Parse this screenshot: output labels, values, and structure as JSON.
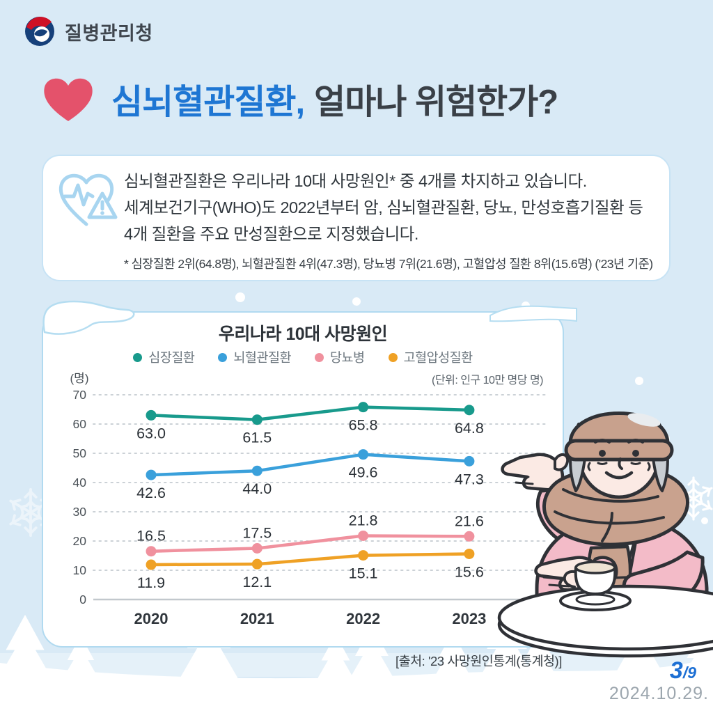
{
  "brand": {
    "agency_name": "질병관리청"
  },
  "header": {
    "title_highlight": "심뇌혈관질환,",
    "title_rest": "얼마나 위험한가?"
  },
  "info_box": {
    "line1": "심뇌혈관질환은 우리나라 10대 사망원인* 중 4개를 차지하고 있습니다.",
    "line2": "세계보건기구(WHO)도 2022년부터 암, 심뇌혈관질환, 당뇨, 만성호흡기질환 등",
    "line3": "4개 질환을 주요 만성질환으로 지정했습니다.",
    "footnote": "* 심장질환 2위(64.8명), 뇌혈관질환 4위(47.3명), 당뇨병 7위(21.6명), 고혈압성 질환 8위(15.6명) ('23년 기준)"
  },
  "chart_data": {
    "type": "line",
    "title": "우리나라 10대 사망원인",
    "unit_label": "(단위: 인구 10만 명당 명)",
    "y_axis_label": "(명)",
    "x": [
      "2020",
      "2021",
      "2022",
      "2023"
    ],
    "ylim": [
      0,
      70
    ],
    "y_ticks": [
      70,
      60,
      50,
      40,
      30,
      20,
      10,
      0
    ],
    "grid": "horizontal-dotted",
    "legend_position": "top",
    "series": [
      {
        "name": "심장질환",
        "color": "#189A8C",
        "values": [
          63.0,
          61.5,
          65.8,
          64.8
        ],
        "label_side": "below"
      },
      {
        "name": "뇌혈관질환",
        "color": "#3AA0DB",
        "values": [
          42.6,
          44.0,
          49.6,
          47.3
        ],
        "label_side": "below"
      },
      {
        "name": "당뇨병",
        "color": "#F0919E",
        "values": [
          16.5,
          17.5,
          21.8,
          21.6
        ],
        "label_side": "above"
      },
      {
        "name": "고혈압성질환",
        "color": "#EFA125",
        "values": [
          11.9,
          12.1,
          15.1,
          15.6
        ],
        "label_side": "below"
      }
    ]
  },
  "footer": {
    "source": "[출처: '23 사망원인통계(통계청)]",
    "page_current": "3",
    "page_suffix": "/9",
    "date": "2024.10.29."
  },
  "colors": {
    "background": "#D9EAF6",
    "accent_blue": "#1E76D3",
    "heart_red": "#E4526B",
    "page_number_blue": "#1C6FD4",
    "date_gray": "#9CA6AE"
  }
}
